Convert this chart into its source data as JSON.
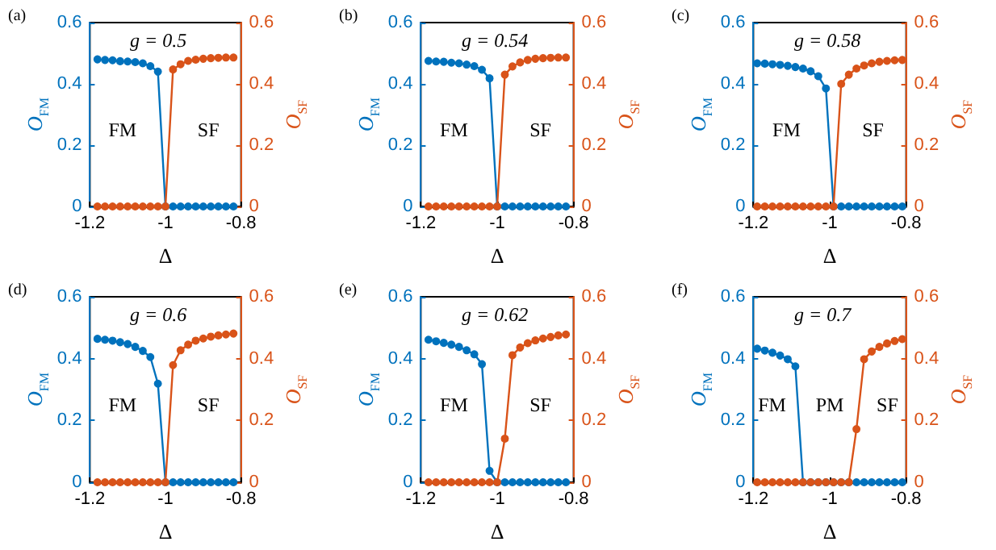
{
  "chart_data": [
    {
      "type": "line",
      "title": "(a)",
      "annotations": [
        "g = 0.5",
        "FM",
        "SF"
      ],
      "xlabel": "Δ",
      "ylabel": "O$_{FM}$",
      "y2label": "O$_{SF}$",
      "x": [
        -1.18,
        -1.16,
        -1.14,
        -1.12,
        -1.1,
        -1.08,
        -1.06,
        -1.04,
        -1.02,
        -1.0,
        -0.98,
        -0.96,
        -0.94,
        -0.92,
        -0.9,
        -0.88,
        -0.86,
        -0.84,
        -0.82
      ],
      "xlim": [
        -1.2,
        -0.8
      ],
      "xticks": [
        -1.2,
        -1,
        -0.8
      ],
      "ylim": [
        0,
        0.6
      ],
      "yticks": [
        0,
        0.2,
        0.4,
        0.6
      ],
      "y2lim": [
        0,
        0.6
      ],
      "y2ticks": [
        0,
        0.2,
        0.4,
        0.6
      ],
      "grid": false,
      "marker": "circle",
      "series": [
        {
          "color": "#0072bd",
          "axis": "y",
          "values": [
            0.48,
            0.478,
            0.477,
            0.474,
            0.473,
            0.471,
            0.467,
            0.458,
            0.44,
            0,
            0,
            0,
            0,
            0,
            0,
            0,
            0,
            0,
            0
          ]
        },
        {
          "color": "#d95319",
          "axis": "y2",
          "values": [
            0,
            0,
            0,
            0,
            0,
            0,
            0,
            0,
            0,
            0,
            0.447,
            0.464,
            0.475,
            0.479,
            0.482,
            0.484,
            0.485,
            0.486,
            0.486
          ]
        }
      ]
    },
    {
      "type": "line",
      "title": "(b)",
      "annotations": [
        "g = 0.54",
        "FM",
        "SF"
      ],
      "xlabel": "Δ",
      "ylabel": "O$_{FM}$",
      "y2label": "O$_{SF}$",
      "x": [
        -1.18,
        -1.16,
        -1.14,
        -1.12,
        -1.1,
        -1.08,
        -1.06,
        -1.04,
        -1.02,
        -1.0,
        -0.98,
        -0.96,
        -0.94,
        -0.92,
        -0.9,
        -0.88,
        -0.86,
        -0.84,
        -0.82
      ],
      "xlim": [
        -1.2,
        -0.8
      ],
      "xticks": [
        -1.2,
        -1,
        -0.8
      ],
      "ylim": [
        0,
        0.6
      ],
      "yticks": [
        0,
        0.2,
        0.4,
        0.6
      ],
      "y2lim": [
        0,
        0.6
      ],
      "y2ticks": [
        0,
        0.2,
        0.4,
        0.6
      ],
      "grid": false,
      "marker": "circle",
      "series": [
        {
          "color": "#0072bd",
          "axis": "y",
          "values": [
            0.475,
            0.473,
            0.472,
            0.469,
            0.467,
            0.463,
            0.458,
            0.446,
            0.418,
            0,
            0,
            0,
            0,
            0,
            0,
            0,
            0,
            0,
            0
          ]
        },
        {
          "color": "#d95319",
          "axis": "y2",
          "values": [
            0,
            0,
            0,
            0,
            0,
            0,
            0,
            0,
            0,
            0,
            0.43,
            0.457,
            0.47,
            0.478,
            0.482,
            0.484,
            0.485,
            0.486,
            0.486
          ]
        }
      ]
    },
    {
      "type": "line",
      "title": "(c)",
      "annotations": [
        "g = 0.58",
        "FM",
        "SF"
      ],
      "xlabel": "Δ",
      "ylabel": "O$_{FM}$",
      "y2label": "O$_{SF}$",
      "x": [
        -1.19,
        -1.17,
        -1.15,
        -1.13,
        -1.11,
        -1.09,
        -1.07,
        -1.05,
        -1.03,
        -1.01,
        -0.99,
        -0.97,
        -0.95,
        -0.93,
        -0.91,
        -0.89,
        -0.87,
        -0.85,
        -0.83,
        -0.81
      ],
      "xlim": [
        -1.2,
        -0.8
      ],
      "xticks": [
        -1.2,
        -1,
        -0.8
      ],
      "ylim": [
        0,
        0.6
      ],
      "yticks": [
        0,
        0.2,
        0.4,
        0.6
      ],
      "y2lim": [
        0,
        0.6
      ],
      "y2ticks": [
        0,
        0.2,
        0.4,
        0.6
      ],
      "grid": false,
      "marker": "circle",
      "series": [
        {
          "color": "#0072bd",
          "axis": "y",
          "values": [
            0.467,
            0.466,
            0.464,
            0.462,
            0.459,
            0.455,
            0.45,
            0.441,
            0.425,
            0.385,
            0,
            0,
            0,
            0,
            0,
            0,
            0,
            0,
            0,
            0
          ]
        },
        {
          "color": "#d95319",
          "axis": "y2",
          "values": [
            0,
            0,
            0,
            0,
            0,
            0,
            0,
            0,
            0,
            0,
            0,
            0.4,
            0.43,
            0.45,
            0.46,
            0.467,
            0.472,
            0.475,
            0.477,
            0.478
          ]
        }
      ]
    },
    {
      "type": "line",
      "title": "(d)",
      "annotations": [
        "g = 0.6",
        "FM",
        "SF"
      ],
      "xlabel": "Δ",
      "ylabel": "O$_{FM}$",
      "y2label": "O$_{SF}$",
      "x": [
        -1.18,
        -1.16,
        -1.14,
        -1.12,
        -1.1,
        -1.08,
        -1.06,
        -1.04,
        -1.02,
        -1.0,
        -0.98,
        -0.96,
        -0.94,
        -0.92,
        -0.9,
        -0.88,
        -0.86,
        -0.84,
        -0.82
      ],
      "xlim": [
        -1.2,
        -0.8
      ],
      "xticks": [
        -1.2,
        -1,
        -0.8
      ],
      "ylim": [
        0,
        0.6
      ],
      "yticks": [
        0,
        0.2,
        0.4,
        0.6
      ],
      "y2lim": [
        0,
        0.6
      ],
      "y2ticks": [
        0,
        0.2,
        0.4,
        0.6
      ],
      "grid": false,
      "marker": "circle",
      "series": [
        {
          "color": "#0072bd",
          "axis": "y",
          "values": [
            0.464,
            0.461,
            0.458,
            0.453,
            0.447,
            0.438,
            0.425,
            0.405,
            0.319,
            0,
            0,
            0,
            0,
            0,
            0,
            0,
            0,
            0,
            0
          ]
        },
        {
          "color": "#d95319",
          "axis": "y2",
          "values": [
            0,
            0,
            0,
            0,
            0,
            0,
            0,
            0,
            0,
            0,
            0.379,
            0.427,
            0.445,
            0.458,
            0.465,
            0.471,
            0.475,
            0.478,
            0.481
          ]
        }
      ]
    },
    {
      "type": "line",
      "title": "(e)",
      "annotations": [
        "g = 0.62",
        "FM",
        "SF"
      ],
      "xlabel": "Δ",
      "ylabel": "O$_{FM}$",
      "y2label": "O$_{SF}$",
      "x": [
        -1.18,
        -1.16,
        -1.14,
        -1.12,
        -1.1,
        -1.08,
        -1.06,
        -1.04,
        -1.02,
        -1.0,
        -0.98,
        -0.96,
        -0.94,
        -0.92,
        -0.9,
        -0.88,
        -0.86,
        -0.84,
        -0.82
      ],
      "xlim": [
        -1.2,
        -0.8
      ],
      "xticks": [
        -1.2,
        -1,
        -0.8
      ],
      "ylim": [
        0,
        0.6
      ],
      "yticks": [
        0,
        0.2,
        0.4,
        0.6
      ],
      "y2lim": [
        0,
        0.6
      ],
      "y2ticks": [
        0,
        0.2,
        0.4,
        0.6
      ],
      "grid": false,
      "marker": "circle",
      "series": [
        {
          "color": "#0072bd",
          "axis": "y",
          "values": [
            0.461,
            0.456,
            0.451,
            0.445,
            0.438,
            0.427,
            0.414,
            0.382,
            0.037,
            0,
            0,
            0,
            0,
            0,
            0,
            0,
            0,
            0,
            0
          ]
        },
        {
          "color": "#d95319",
          "axis": "y2",
          "values": [
            0,
            0,
            0,
            0,
            0,
            0,
            0,
            0,
            0,
            0,
            0.141,
            0.411,
            0.436,
            0.45,
            0.459,
            0.465,
            0.47,
            0.475,
            0.478
          ]
        }
      ]
    },
    {
      "type": "line",
      "title": "(f)",
      "annotations": [
        "g = 0.7",
        "FM",
        "PM",
        "SF"
      ],
      "xlabel": "Δ",
      "ylabel": "O$_{FM}$",
      "y2label": "O$_{SF}$",
      "x": [
        -1.19,
        -1.17,
        -1.15,
        -1.13,
        -1.11,
        -1.09,
        -1.07,
        -1.05,
        -1.03,
        -1.01,
        -0.99,
        -0.97,
        -0.95,
        -0.93,
        -0.91,
        -0.89,
        -0.87,
        -0.85,
        -0.83,
        -0.81
      ],
      "xlim": [
        -1.2,
        -0.8
      ],
      "xticks": [
        -1.2,
        -1,
        -0.8
      ],
      "ylim": [
        0,
        0.6
      ],
      "yticks": [
        0,
        0.2,
        0.4,
        0.6
      ],
      "y2lim": [
        0,
        0.6
      ],
      "y2ticks": [
        0,
        0.2,
        0.4,
        0.6
      ],
      "grid": false,
      "marker": "circle",
      "series": [
        {
          "color": "#0072bd",
          "axis": "y",
          "values": [
            0.432,
            0.426,
            0.419,
            0.41,
            0.398,
            0.375,
            0,
            0,
            0,
            0,
            0,
            0,
            0,
            0,
            0,
            0,
            0,
            0,
            0,
            0
          ]
        },
        {
          "color": "#d95319",
          "axis": "y2",
          "values": [
            0,
            0,
            0,
            0,
            0,
            0,
            0,
            0,
            0,
            0,
            0,
            0,
            0,
            0.172,
            0.398,
            0.423,
            0.438,
            0.449,
            0.457,
            0.463
          ]
        }
      ]
    }
  ]
}
